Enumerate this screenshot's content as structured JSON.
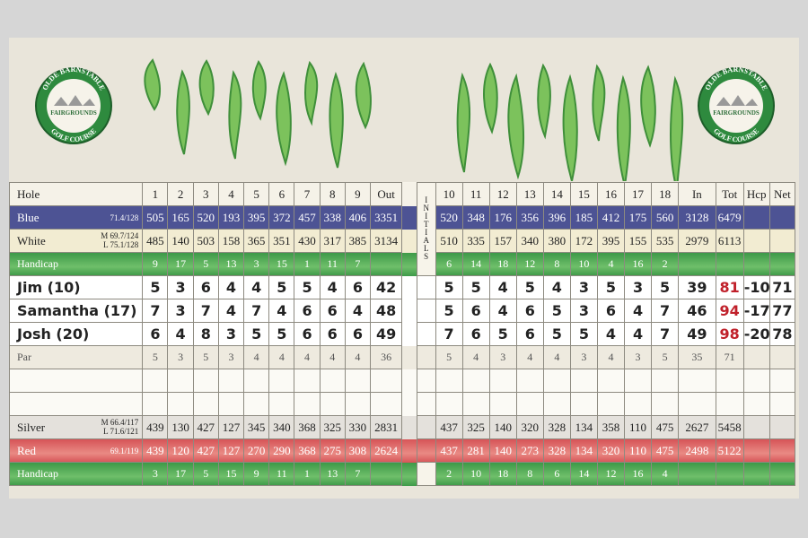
{
  "logo": {
    "top": "OLDE BARNSTABLE",
    "middle": "FAIRGROUNDS",
    "bottom": "GOLF COURSE"
  },
  "table": {
    "initials": "INITIALS",
    "rows": [
      {
        "label": "Hole",
        "cells": [
          1,
          2,
          3,
          4,
          5,
          6,
          7,
          8,
          9,
          "Out",
          10,
          11,
          12,
          13,
          14,
          15,
          16,
          17,
          18,
          "In",
          "Tot",
          "Hcp",
          "Net"
        ]
      },
      {
        "label": "Blue",
        "rating": [
          "71.4/128"
        ],
        "cells": [
          505,
          165,
          520,
          193,
          395,
          372,
          457,
          338,
          406,
          3351,
          520,
          348,
          176,
          356,
          396,
          185,
          412,
          175,
          560,
          3128,
          6479,
          null,
          null
        ]
      },
      {
        "label": "White",
        "rating": [
          "M 69.7/124",
          "L 75.1/128"
        ],
        "cells": [
          485,
          140,
          503,
          158,
          365,
          351,
          430,
          317,
          385,
          3134,
          510,
          335,
          157,
          340,
          380,
          172,
          395,
          155,
          535,
          2979,
          6113,
          null,
          null
        ]
      },
      {
        "label": "Handicap",
        "cells": [
          9,
          17,
          5,
          13,
          3,
          15,
          1,
          11,
          7,
          null,
          6,
          14,
          18,
          12,
          8,
          10,
          4,
          16,
          2,
          null,
          null,
          null,
          null
        ]
      },
      {
        "label": "Jim   (10)",
        "cells": [
          5,
          3,
          6,
          4,
          4,
          5,
          5,
          4,
          6,
          42,
          5,
          5,
          4,
          5,
          4,
          3,
          5,
          3,
          5,
          39,
          81,
          -10,
          71
        ]
      },
      {
        "label": "Samantha   (17)",
        "cells": [
          7,
          3,
          7,
          4,
          7,
          4,
          6,
          6,
          4,
          48,
          5,
          6,
          4,
          6,
          5,
          3,
          6,
          4,
          7,
          46,
          94,
          -17,
          77
        ]
      },
      {
        "label": "Josh   (20)",
        "cells": [
          6,
          4,
          8,
          3,
          5,
          5,
          6,
          6,
          6,
          49,
          7,
          6,
          5,
          6,
          5,
          5,
          4,
          4,
          7,
          49,
          98,
          -20,
          78
        ]
      },
      {
        "label": "Par",
        "cells": [
          5,
          3,
          5,
          3,
          4,
          4,
          4,
          4,
          4,
          36,
          5,
          4,
          3,
          4,
          4,
          3,
          4,
          3,
          5,
          35,
          71,
          null,
          null
        ]
      },
      {
        "label": "Silver",
        "rating": [
          "M 66.4/117",
          "L 71.6/121"
        ],
        "cells": [
          439,
          130,
          427,
          127,
          345,
          340,
          368,
          325,
          330,
          2831,
          437,
          325,
          140,
          320,
          328,
          134,
          358,
          110,
          475,
          2627,
          5458,
          null,
          null
        ]
      },
      {
        "label": "Red",
        "rating": [
          "69.1/119"
        ],
        "cells": [
          439,
          120,
          427,
          127,
          270,
          290,
          368,
          275,
          308,
          2624,
          437,
          281,
          140,
          273,
          328,
          134,
          320,
          110,
          475,
          2498,
          5122,
          null,
          null
        ]
      },
      {
        "label": "Handicap",
        "cells": [
          3,
          17,
          5,
          15,
          9,
          11,
          1,
          13,
          7,
          null,
          2,
          10,
          18,
          8,
          6,
          14,
          12,
          16,
          4,
          null,
          null,
          null,
          null
        ]
      }
    ]
  }
}
